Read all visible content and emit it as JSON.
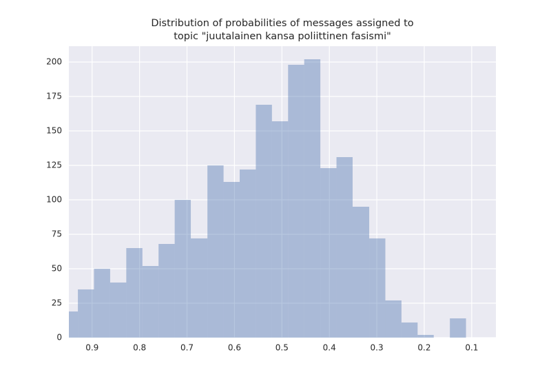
{
  "chart_data": {
    "type": "histogram",
    "title": [
      "Distribution of probabilities of messages assigned to",
      "topic \"juutalainen kansa poliittinen fasismi\""
    ],
    "bins": [
      0.112,
      0.146,
      0.18,
      0.214,
      0.248,
      0.282,
      0.316,
      0.351,
      0.385,
      0.419,
      0.453,
      0.487,
      0.521,
      0.555,
      0.589,
      0.623,
      0.657,
      0.692,
      0.726,
      0.76,
      0.794,
      0.828,
      0.862,
      0.896,
      0.93,
      0.964
    ],
    "values": [
      14,
      0,
      2,
      11,
      27,
      72,
      95,
      131,
      123,
      202,
      198,
      157,
      169,
      122,
      113,
      125,
      72,
      100,
      68,
      52,
      65,
      40,
      50,
      35,
      19
    ],
    "color": "#4c72b0",
    "xlim": [
      0.949,
      0.049
    ],
    "xticks": [
      0.9,
      0.8,
      0.7,
      0.6,
      0.5,
      0.4,
      0.3,
      0.2,
      0.1
    ],
    "ylim": [
      0,
      211.5
    ],
    "yticks": [
      0,
      25,
      50,
      75,
      100,
      125,
      150,
      175,
      200
    ],
    "grid": true
  }
}
